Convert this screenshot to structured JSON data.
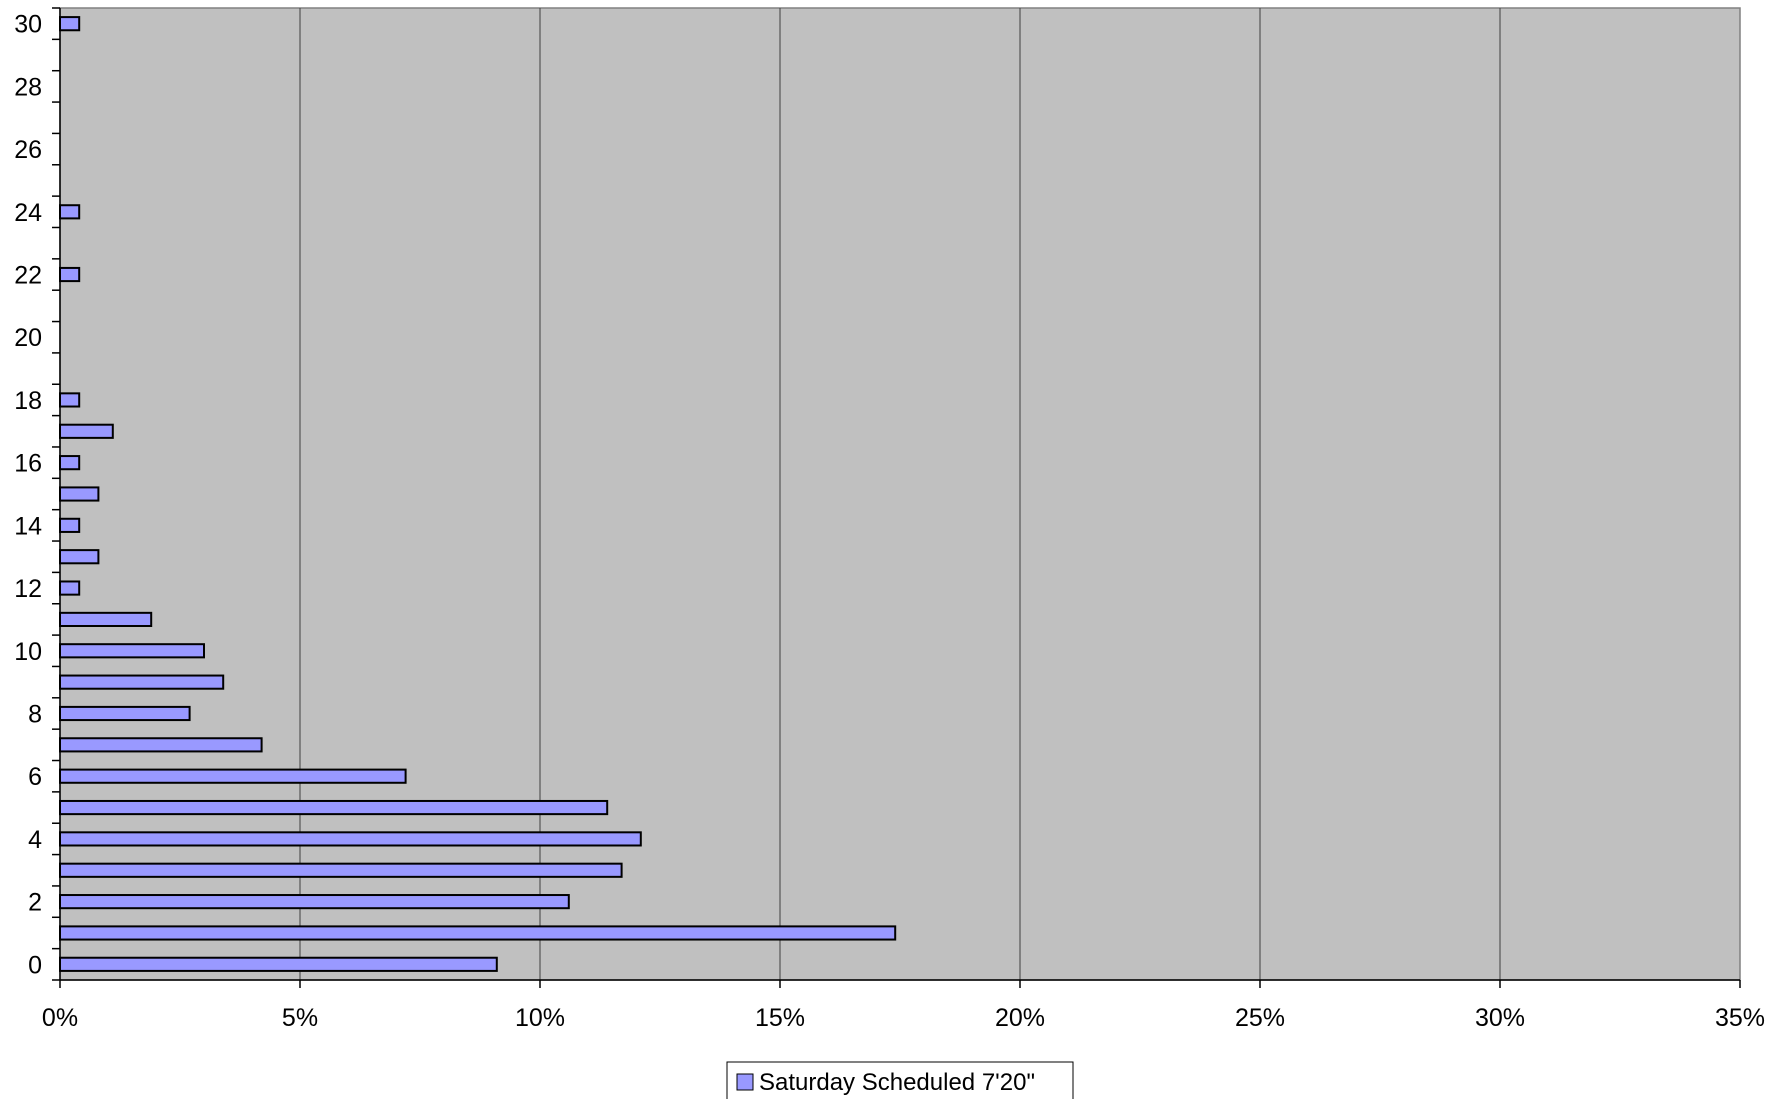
{
  "chart_data": {
    "type": "bar",
    "orientation": "horizontal",
    "title": "",
    "xlabel": "",
    "ylabel": "",
    "xlim": [
      0,
      35
    ],
    "x_ticks": [
      0,
      5,
      10,
      15,
      20,
      25,
      30,
      35
    ],
    "x_tick_labels": [
      "0%",
      "5%",
      "10%",
      "15%",
      "20%",
      "25%",
      "30%",
      "35%"
    ],
    "ylim": [
      0,
      30
    ],
    "y_ticks": [
      0,
      2,
      4,
      6,
      8,
      10,
      12,
      14,
      16,
      18,
      20,
      22,
      24,
      26,
      28,
      30
    ],
    "y_tick_labels": [
      "0",
      "2",
      "4",
      "6",
      "8",
      "10",
      "12",
      "14",
      "16",
      "18",
      "20",
      "22",
      "24",
      "26",
      "28",
      "30"
    ],
    "grid": "vertical",
    "plot_background": "#c0c0c0",
    "bar_color": "#9999ff",
    "legend_position": "bottom-center",
    "categories": [
      0,
      1,
      2,
      3,
      4,
      5,
      6,
      7,
      8,
      9,
      10,
      11,
      12,
      13,
      14,
      15,
      16,
      17,
      18,
      22,
      24,
      30
    ],
    "series": [
      {
        "name": "Saturday Scheduled 7'20\"",
        "values": [
          9.1,
          17.4,
          10.6,
          11.7,
          12.1,
          11.4,
          7.2,
          4.2,
          2.7,
          3.4,
          3.0,
          1.9,
          0.4,
          0.8,
          0.4,
          0.8,
          0.4,
          1.1,
          0.4,
          0.4,
          0.4,
          0.4
        ]
      }
    ]
  }
}
